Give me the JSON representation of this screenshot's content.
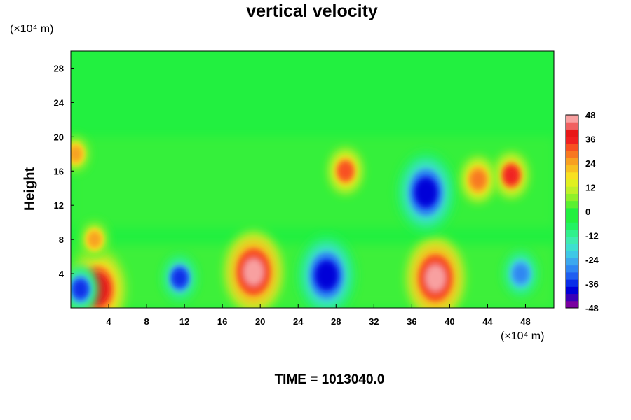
{
  "chart_data": {
    "type": "heatmap",
    "title": "vertical velocity",
    "ylabel": "Height",
    "y_unit": "(×10⁴ m)",
    "x_unit": "(×10⁴ m)",
    "xlim": [
      0,
      51
    ],
    "ylim": [
      0,
      30
    ],
    "x_ticks": [
      4,
      8,
      12,
      16,
      20,
      24,
      28,
      32,
      36,
      40,
      44,
      48
    ],
    "y_ticks": [
      4,
      8,
      12,
      16,
      20,
      24,
      28
    ],
    "colorbar": {
      "min": -48,
      "max": 48,
      "step": 4,
      "ticks": [
        48,
        36,
        24,
        12,
        0,
        -12,
        -24,
        -36,
        -48
      ],
      "colors": [
        "#7a00a0",
        "#3a00b8",
        "#0000d8",
        "#0a2ee8",
        "#1e5ef0",
        "#2e86f2",
        "#3ca8ee",
        "#3ec8e6",
        "#3edfd0",
        "#3eebb0",
        "#30f08c",
        "#22f262",
        "#22f040",
        "#22f040",
        "#5af030",
        "#90f02a",
        "#c0f028",
        "#e0f020",
        "#f8e020",
        "#f8c020",
        "#f8a020",
        "#f87820",
        "#f85020",
        "#f02020",
        "#e81818",
        "#f06060",
        "#f8a0a0"
      ]
    },
    "features": [
      {
        "x": 19.3,
        "y": 4.2,
        "value": 48
      },
      {
        "x": 38.5,
        "y": 3.5,
        "value": 48
      },
      {
        "x": 2.8,
        "y": 2.2,
        "value": 40
      },
      {
        "x": 2.5,
        "y": 8.0,
        "value": 26
      },
      {
        "x": 11.5,
        "y": 3.5,
        "value": -36
      },
      {
        "x": 27.0,
        "y": 3.8,
        "value": -40
      },
      {
        "x": 47.5,
        "y": 4.0,
        "value": -30
      },
      {
        "x": 1.0,
        "y": 2.2,
        "value": -36
      },
      {
        "x": 37.5,
        "y": 13.5,
        "value": -40
      },
      {
        "x": 29.0,
        "y": 16.0,
        "value": 34
      },
      {
        "x": 46.5,
        "y": 15.5,
        "value": 36
      },
      {
        "x": 43.0,
        "y": 15.0,
        "value": 30
      },
      {
        "x": 0.5,
        "y": 18.0,
        "value": 26
      }
    ],
    "time_label": "TIME = 1013040.0"
  }
}
